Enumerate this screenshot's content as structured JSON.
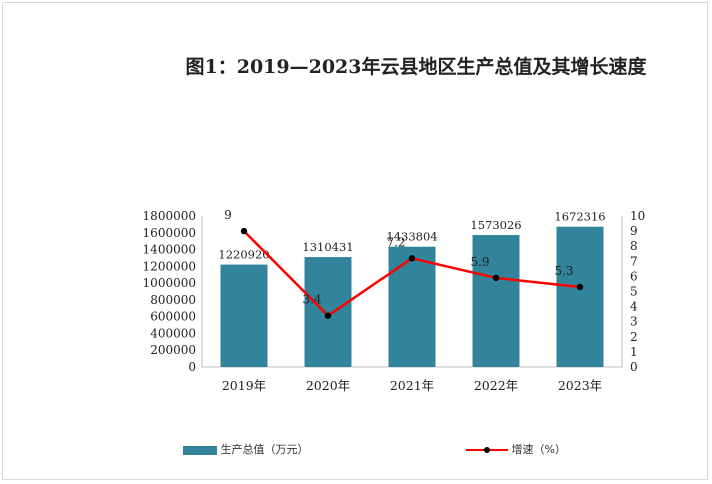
{
  "title": "图1：2019—2023年云县地区生产总值及其增长速度",
  "chart_data": {
    "type": "bar+line",
    "categories": [
      "2019年",
      "2020年",
      "2021年",
      "2022年",
      "2023年"
    ],
    "series": [
      {
        "name": "生产总值（万元）",
        "type": "bar",
        "axis": "left",
        "color": "#31849b",
        "values": [
          1220920,
          1310431,
          1433804,
          1573026,
          1672316
        ]
      },
      {
        "name": "增速（%）",
        "type": "line",
        "axis": "right",
        "color": "#ff0000",
        "marker_color": "#000000",
        "values": [
          9,
          3.4,
          7.2,
          5.9,
          5.3
        ]
      }
    ],
    "bar_labels": [
      "1220920",
      "1310431",
      "1433804",
      "1573026",
      "1672316"
    ],
    "line_labels": [
      "9",
      "3.4",
      "7.2",
      "5.9",
      "5.3"
    ],
    "y_left": {
      "min": 0,
      "max": 1800000,
      "step": 200000,
      "ticks": [
        "0",
        "200000",
        "400000",
        "600000",
        "800000",
        "1000000",
        "1200000",
        "1400000",
        "1600000",
        "1800000"
      ]
    },
    "y_right": {
      "min": 0,
      "max": 10,
      "step": 1,
      "ticks": [
        "0",
        "1",
        "2",
        "3",
        "4",
        "5",
        "6",
        "7",
        "8",
        "9",
        "10"
      ]
    },
    "legend_position": "bottom",
    "grid": false
  }
}
